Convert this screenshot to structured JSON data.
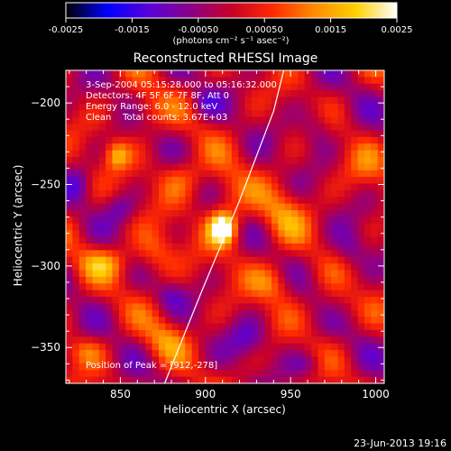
{
  "chart_data": {
    "type": "heatmap",
    "title": "Reconstructed RHESSI Image",
    "xlabel": "Heliocentric X (arcsec)",
    "ylabel": "Heliocentric Y (arcsec)",
    "xlim": [
      818,
      1005
    ],
    "ylim": [
      -372,
      -180
    ],
    "x_ticks": [
      850,
      900,
      950,
      1000
    ],
    "y_ticks": [
      -350,
      -300,
      -250,
      -200
    ],
    "colorbar": {
      "range": [
        -0.0025,
        0.0025
      ],
      "tick_values": [
        -0.0025,
        -0.0015,
        -0.0005,
        0.0005,
        0.0015,
        0.0025
      ],
      "tick_labels": [
        "-0.0025",
        "-0.0015",
        "-0.00050",
        "0.00050",
        "0.0015",
        "0.0025"
      ],
      "unit_label": "(photons cm⁻² s⁻¹ asec⁻²)",
      "colormap": [
        "#000000",
        "#0000ff",
        "#5a00d8",
        "#8a0088",
        "#c8002a",
        "#ff2a00",
        "#ff8a00",
        "#ffd000",
        "#ffffff"
      ]
    },
    "annotations": [
      "3-Sep-2004 05:15:28.000 to 05:16:32.000",
      "Detectors: 4F 5F 6F 7F 8F, Att 0",
      "Energy Range: 6.0 - 12.0 keV",
      "Clean    Total counts: 3.67E+03"
    ],
    "peak_label": "Position of Peak = [912,-278]",
    "peak": {
      "x": 912,
      "y": -278,
      "value": 0.0025
    },
    "limb_curve": [
      [
        876,
        -372
      ],
      [
        898,
        -315
      ],
      [
        920,
        -260
      ],
      [
        940,
        -205
      ],
      [
        946,
        -180
      ]
    ],
    "sources": [
      {
        "x": 910,
        "y": -277,
        "sx": 5,
        "sy": 6,
        "amp": 1.0
      },
      {
        "x": 912,
        "y": -266,
        "sx": 9,
        "sy": 18,
        "amp": 0.38
      },
      {
        "x": 848,
        "y": -232,
        "sx": 5,
        "sy": 6,
        "amp": 0.55
      },
      {
        "x": 840,
        "y": -298,
        "sx": 10,
        "sy": 7,
        "amp": 0.45
      },
      {
        "x": 870,
        "y": -292,
        "sx": 9,
        "sy": 10,
        "amp": 0.42
      },
      {
        "x": 886,
        "y": -245,
        "sx": 10,
        "sy": 9,
        "amp": 0.38
      },
      {
        "x": 946,
        "y": -268,
        "sx": 10,
        "sy": 12,
        "amp": 0.4
      },
      {
        "x": 940,
        "y": -310,
        "sx": 9,
        "sy": 9,
        "amp": 0.42
      },
      {
        "x": 876,
        "y": -345,
        "sx": 9,
        "sy": 9,
        "amp": 0.38
      },
      {
        "x": 830,
        "y": -352,
        "sx": 8,
        "sy": 6,
        "amp": 0.32
      },
      {
        "x": 865,
        "y": -205,
        "sx": 8,
        "sy": 9,
        "amp": 0.28
      },
      {
        "x": 995,
        "y": -240,
        "sx": 10,
        "sy": 10,
        "amp": 0.25
      },
      {
        "x": 975,
        "y": -325,
        "sx": 8,
        "sy": 8,
        "amp": 0.22
      },
      {
        "x": 850,
        "y": -265,
        "sx": 6,
        "sy": 6,
        "amp": -0.3
      },
      {
        "x": 925,
        "y": -345,
        "sx": 8,
        "sy": 8,
        "amp": -0.35
      },
      {
        "x": 880,
        "y": -318,
        "sx": 6,
        "sy": 6,
        "amp": -0.28
      },
      {
        "x": 965,
        "y": -215,
        "sx": 7,
        "sy": 10,
        "amp": -0.3
      },
      {
        "x": 985,
        "y": -290,
        "sx": 7,
        "sy": 9,
        "amp": -0.3
      },
      {
        "x": 900,
        "y": -200,
        "sx": 6,
        "sy": 6,
        "amp": -0.28
      },
      {
        "x": 960,
        "y": -360,
        "sx": 7,
        "sy": 5,
        "amp": -0.28
      },
      {
        "x": 825,
        "y": -250,
        "sx": 5,
        "sy": 7,
        "amp": -0.28
      }
    ]
  },
  "footer": {
    "timestamp": "23-Jun-2013 19:16"
  }
}
